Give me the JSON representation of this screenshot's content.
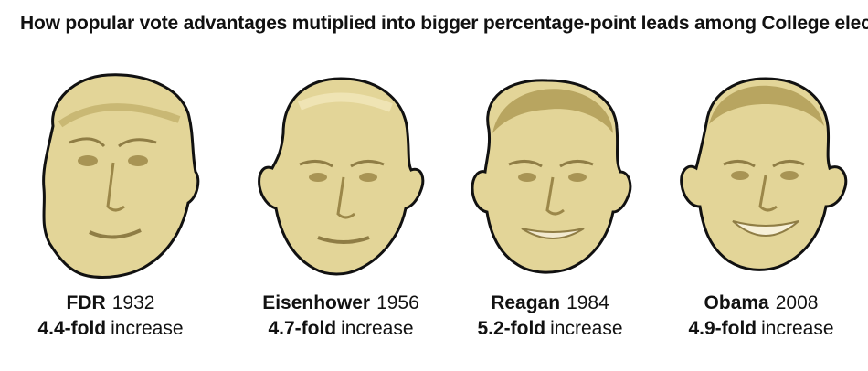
{
  "title": "How popular vote advantages mutiplied into bigger percentage-point leads among College electors",
  "face_color": "#e3d598",
  "shade_color": "#c9b874",
  "outline_color": "#111111",
  "presidents": [
    {
      "name": "FDR",
      "year": "1932",
      "fold": "4.4-fold",
      "suffix": "increase"
    },
    {
      "name": "Eisenhower",
      "year": "1956",
      "fold": "4.7-fold",
      "suffix": "increase"
    },
    {
      "name": "Reagan",
      "year": "1984",
      "fold": "5.2-fold",
      "suffix": "increase"
    },
    {
      "name": "Obama",
      "year": "2008",
      "fold": "4.9-fold",
      "suffix": "increase"
    }
  ]
}
